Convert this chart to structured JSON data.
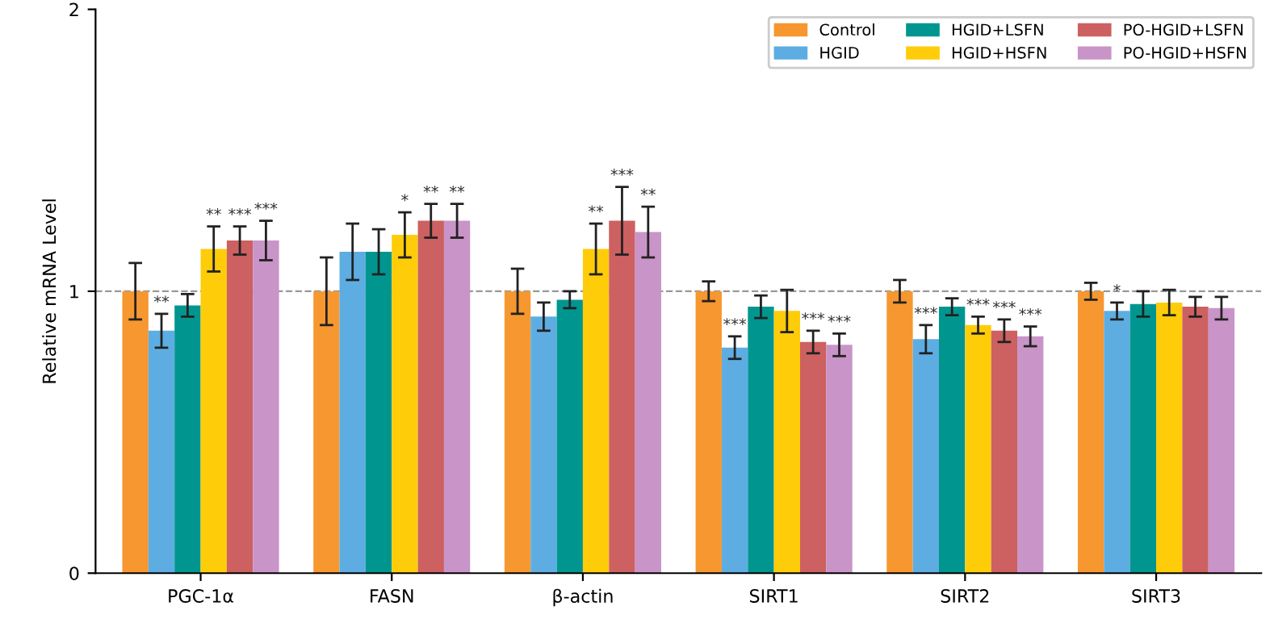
{
  "chart_data": {
    "type": "bar",
    "ylabel": "Relative mRNA Level",
    "categories": [
      "PGC-1α",
      "FASN",
      "β-actin",
      "SIRT1",
      "SIRT2",
      "SIRT3"
    ],
    "ylim": [
      0,
      2
    ],
    "yticks": [
      0,
      1,
      2
    ],
    "grid": false,
    "legend": "top right",
    "ref_lines": [
      {
        "axis": "y",
        "value": 1,
        "color": "#999999",
        "line_style": "dashed"
      }
    ],
    "series": [
      {
        "name": "Control",
        "color": "#f7972f",
        "values": [
          1.0,
          1.0,
          1.0,
          1.0,
          1.0,
          1.0
        ],
        "errors": [
          0.1,
          0.12,
          0.08,
          0.035,
          0.04,
          0.03
        ],
        "value_labels": [
          null,
          null,
          null,
          null,
          null,
          null
        ]
      },
      {
        "name": "HGID",
        "color": "#5dade2",
        "values": [
          0.86,
          1.14,
          0.91,
          0.8,
          0.83,
          0.93
        ],
        "errors": [
          0.06,
          0.1,
          0.05,
          0.04,
          0.05,
          0.03
        ],
        "value_labels": [
          "**",
          null,
          null,
          "***",
          "***",
          "*"
        ]
      },
      {
        "name": "HGID+LSFN",
        "color": "#00968f",
        "values": [
          0.95,
          1.14,
          0.97,
          0.945,
          0.945,
          0.955
        ],
        "errors": [
          0.04,
          0.08,
          0.03,
          0.04,
          0.03,
          0.045
        ],
        "value_labels": [
          null,
          null,
          null,
          null,
          null,
          null
        ]
      },
      {
        "name": "HGID+HSFN",
        "color": "#fecc09",
        "values": [
          1.15,
          1.2,
          1.15,
          0.93,
          0.88,
          0.96
        ],
        "errors": [
          0.08,
          0.08,
          0.09,
          0.075,
          0.03,
          0.045
        ],
        "value_labels": [
          "**",
          "*",
          "**",
          null,
          "***",
          null
        ]
      },
      {
        "name": "PO-HGID+LSFN",
        "color": "#cd6060",
        "values": [
          1.18,
          1.25,
          1.25,
          0.82,
          0.86,
          0.945
        ],
        "errors": [
          0.05,
          0.06,
          0.12,
          0.04,
          0.04,
          0.035
        ],
        "value_labels": [
          "***",
          "**",
          "***",
          "***",
          "***",
          null
        ]
      },
      {
        "name": "PO-HGID+HSFN",
        "color": "#c994c8",
        "values": [
          1.18,
          1.25,
          1.21,
          0.81,
          0.84,
          0.94
        ],
        "errors": [
          0.07,
          0.06,
          0.09,
          0.04,
          0.035,
          0.04
        ],
        "value_labels": [
          "***",
          "**",
          "**",
          "***",
          "***",
          null
        ]
      }
    ]
  }
}
